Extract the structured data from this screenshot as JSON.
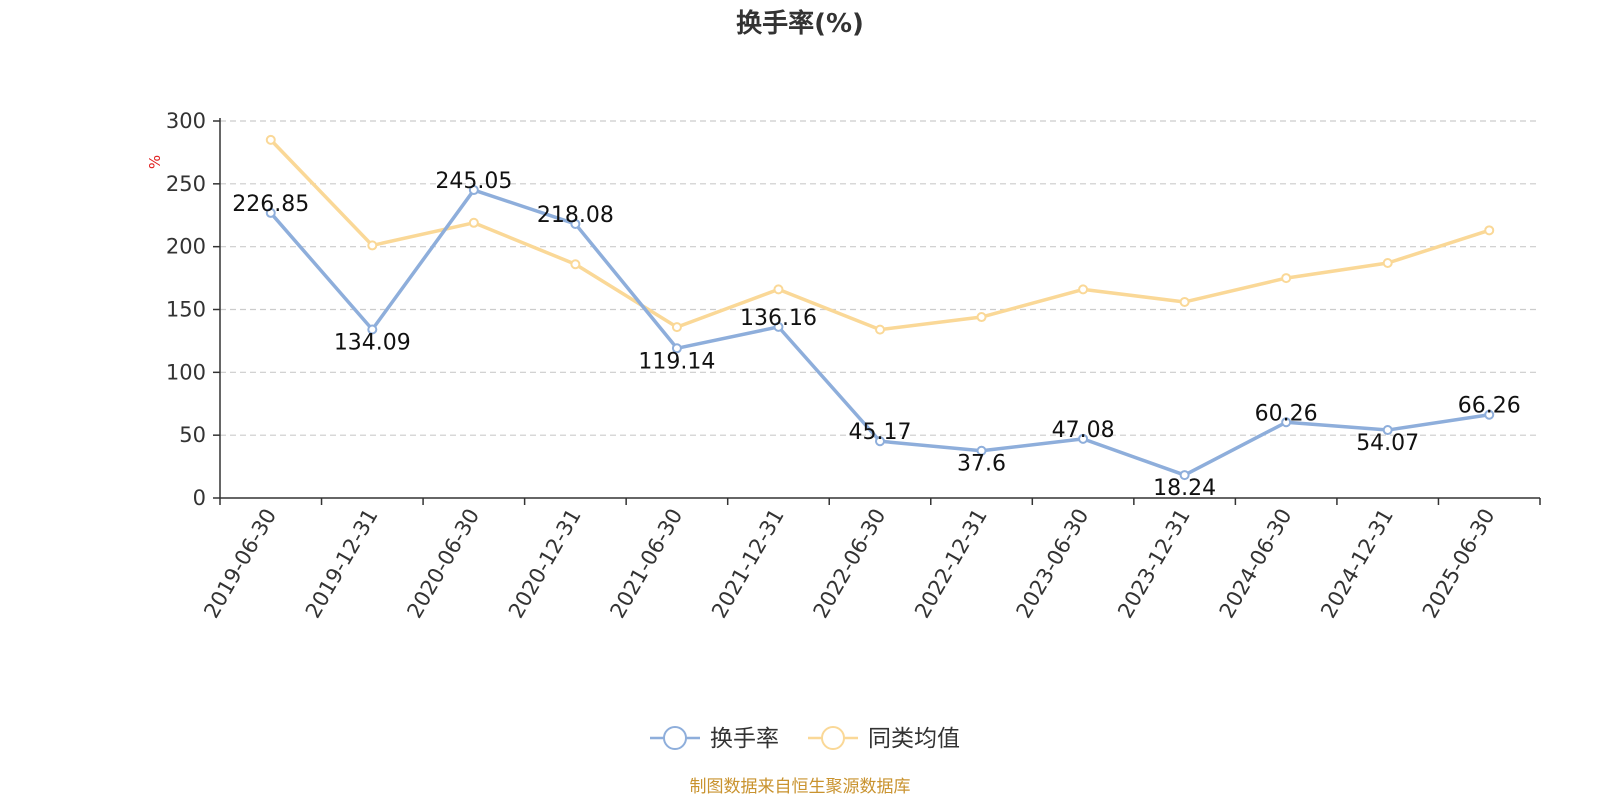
{
  "chart_data": {
    "type": "line",
    "title": "换手率(%)",
    "ylabel": "%",
    "ylim": [
      0,
      300
    ],
    "yticks": [
      0,
      50,
      100,
      150,
      200,
      250,
      300
    ],
    "grid": true,
    "legend_position": "bottom-center",
    "categories": [
      "2019-06-30",
      "2019-12-31",
      "2020-06-30",
      "2020-12-31",
      "2021-06-30",
      "2021-12-31",
      "2022-06-30",
      "2022-12-31",
      "2023-06-30",
      "2023-12-31",
      "2024-06-30",
      "2024-12-31",
      "2025-06-30"
    ],
    "series": [
      {
        "name": "换手率",
        "color": "#8eaedb",
        "values": [
          226.85,
          134.09,
          245.05,
          218.08,
          119.14,
          136.16,
          45.17,
          37.6,
          47.08,
          18.24,
          60.26,
          54.07,
          66.26
        ],
        "data_labels": [
          "226.85",
          "134.09",
          "245.05",
          "218.08",
          "119.14",
          "136.16",
          "45.17",
          "37.6",
          "47.08",
          "18.24",
          "60.26",
          "54.07",
          "66.26"
        ]
      },
      {
        "name": "同类均值",
        "color": "#fad897",
        "values": [
          285,
          201,
          219,
          186,
          136,
          166,
          134,
          144,
          166,
          156,
          175,
          187,
          213
        ]
      }
    ]
  },
  "footer": {
    "source": "制图数据来自恒生聚源数据库",
    "color": "#c9932f"
  }
}
